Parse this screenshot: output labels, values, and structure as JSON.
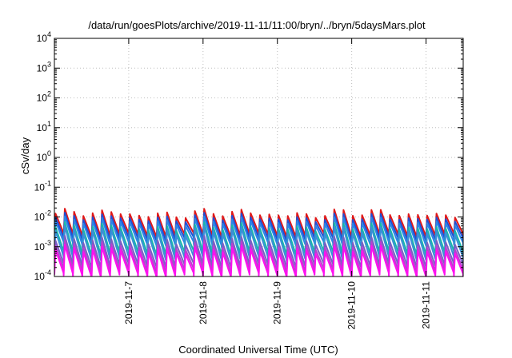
{
  "chart_data": {
    "type": "line",
    "title": "/data/run/goesPlots/archive/2019-11-11/11:00/bryn/../bryn/5daysMars.plot",
    "xlabel": "Coordinated Universal Time (UTC)",
    "ylabel": "cSv/day",
    "y_scale": "log",
    "ylim": [
      0.0001,
      10000
    ],
    "xlim": [
      "2019-11-06 00:00",
      "2019-11-11 12:00"
    ],
    "y_ticks": [
      {
        "value": 0.0001,
        "base": "10",
        "exp": "-4"
      },
      {
        "value": 0.001,
        "base": "10",
        "exp": "-3"
      },
      {
        "value": 0.01,
        "base": "10",
        "exp": "-2"
      },
      {
        "value": 0.1,
        "base": "10",
        "exp": "-1"
      },
      {
        "value": 1,
        "base": "10",
        "exp": "0"
      },
      {
        "value": 10,
        "base": "10",
        "exp": "1"
      },
      {
        "value": 100,
        "base": "10",
        "exp": "2"
      },
      {
        "value": 1000,
        "base": "10",
        "exp": "3"
      },
      {
        "value": 10000,
        "base": "10",
        "exp": "4"
      }
    ],
    "x_ticks": [
      {
        "value": "2019-11-07",
        "label": "2019-11-7"
      },
      {
        "value": "2019-11-08",
        "label": "2019-11-8"
      },
      {
        "value": "2019-11-09",
        "label": "2019-11-9"
      },
      {
        "value": "2019-11-10",
        "label": "2019-11-10"
      },
      {
        "value": "2019-11-11",
        "label": "2019-11-11"
      }
    ],
    "grid": true,
    "legend": "none",
    "series": [
      {
        "color": "#e01818",
        "cycle_hours": 3.0,
        "peak": 0.013,
        "trough": 0.0022,
        "start": "2019-11-06 00:00"
      },
      {
        "color": "#1f4fd6",
        "cycle_hours": 3.0,
        "peak": 0.0095,
        "trough": 0.0016,
        "start": "2019-11-06 00:00"
      },
      {
        "color": "#2b86e6",
        "cycle_hours": 3.0,
        "peak": 0.0072,
        "trough": 0.0011,
        "start": "2019-11-06 00:00"
      },
      {
        "color": "#18b7a9",
        "cycle_hours": 3.0,
        "peak": 0.0046,
        "trough": 0.00055,
        "start": "2019-11-06 00:00"
      },
      {
        "color": "#3a8fd8",
        "cycle_hours": 3.0,
        "peak": 0.0034,
        "trough": 0.00036,
        "start": "2019-11-06 00:00"
      },
      {
        "color": "#7a5fc4",
        "cycle_hours": 3.0,
        "peak": 0.0016,
        "trough": 0.00021,
        "start": "2019-11-06 00:00"
      },
      {
        "color": "#bb3fd0",
        "cycle_hours": 3.0,
        "peak": 0.0011,
        "trough": 0.00014,
        "start": "2019-11-06 00:00"
      },
      {
        "color": "#ff10f0",
        "cycle_hours": 3.0,
        "peak": 0.0008,
        "trough": 0.0001,
        "start": "2019-11-06 00:00"
      }
    ]
  }
}
